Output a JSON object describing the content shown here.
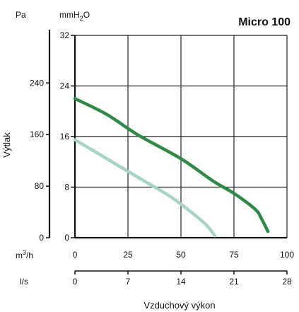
{
  "chart_data": {
    "type": "line",
    "title": "Micro 100",
    "ylabel": "Výtlak",
    "xlabel": "Vzduchový výkon",
    "y_units": {
      "pa": "Pa",
      "mmh2o_base": "mmH",
      "mmh2o_sub": "2",
      "mmh2o_tail": "O"
    },
    "x_units": {
      "m3h_base": "m",
      "m3h_sup": "3",
      "m3h_tail": "/h",
      "ls": "l/s"
    },
    "ylim_mmh2o": [
      0,
      32
    ],
    "xlim_m3h": [
      0,
      100
    ],
    "y_ticks_mmh2o": [
      "0",
      "8",
      "16",
      "24",
      "32"
    ],
    "y_ticks_pa": [
      "0",
      "80",
      "160",
      "240"
    ],
    "x_ticks_m3h": [
      "0",
      "25",
      "50",
      "75",
      "100"
    ],
    "x_ticks_ls": [
      "0",
      "7",
      "14",
      "21",
      "28"
    ],
    "grid": true,
    "series": [
      {
        "color": "#2e8b45",
        "points": [
          [
            0,
            22
          ],
          [
            15,
            19.5
          ],
          [
            30,
            16.2
          ],
          [
            50,
            12.5
          ],
          [
            65,
            9
          ],
          [
            75,
            7
          ],
          [
            85,
            4.5
          ],
          [
            88,
            3
          ],
          [
            91,
            1
          ]
        ]
      },
      {
        "color": "#a6d5c2",
        "points": [
          [
            0,
            15.5
          ],
          [
            15,
            12.5
          ],
          [
            30,
            9.5
          ],
          [
            45,
            6.5
          ],
          [
            55,
            4
          ],
          [
            62,
            2
          ],
          [
            66,
            0.3
          ]
        ]
      }
    ]
  }
}
